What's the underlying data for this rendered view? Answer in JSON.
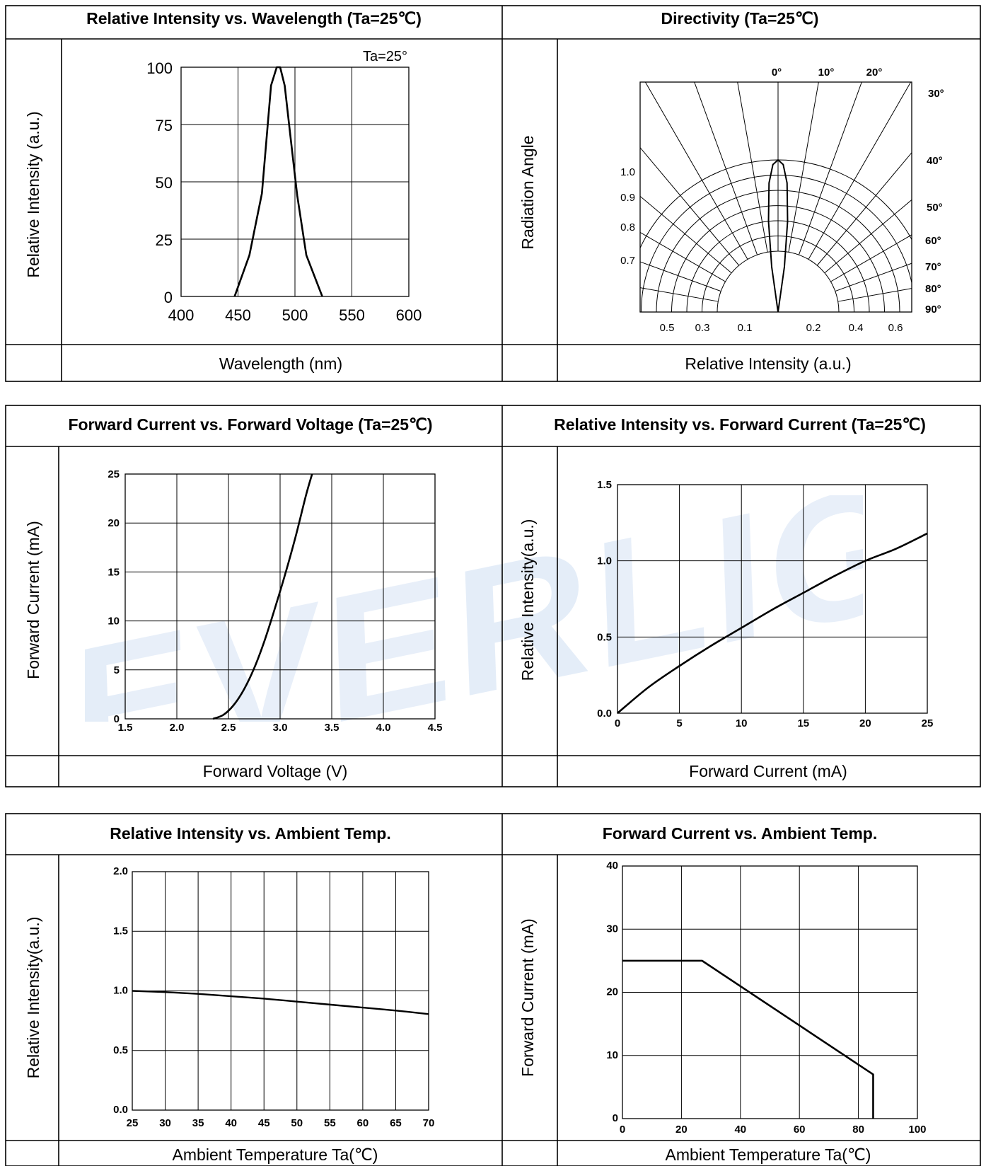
{
  "watermark": "EVERLIGHT",
  "chart_data": [
    {
      "type": "line",
      "title": "Relative Intensity vs. Wavelength (Ta=25℃)",
      "xlabel": "Wavelength (nm)",
      "ylabel": "Relative Intensity (a.u.)",
      "annotation": "Ta=25°",
      "xlim": [
        400,
        600
      ],
      "ylim": [
        0,
        100
      ],
      "xticks": [
        "400",
        "450",
        "500",
        "550",
        "600"
      ],
      "yticks": [
        "0",
        "25",
        "50",
        "75",
        "100"
      ],
      "x": [
        447,
        460,
        471,
        479,
        484,
        487,
        491,
        496,
        502,
        510,
        524
      ],
      "y": [
        0,
        18,
        45,
        92,
        100,
        100,
        92,
        70,
        44,
        18,
        0
      ]
    },
    {
      "type": "polar",
      "title": "Directivity (Ta=25℃)",
      "xlabel": "Relative Intensity (a.u.)",
      "ylabel": "Radiation Angle",
      "angle_labels": [
        "0°",
        "10°",
        "20°",
        "30°",
        "40°",
        "50°",
        "60°",
        "70°",
        "80°",
        "90°"
      ],
      "radial_labels": [
        "1.0",
        "0.9",
        "0.8",
        "0.7"
      ],
      "bottom_labels": [
        "0.5",
        "0.3",
        "0.1",
        "0.2",
        "0.4",
        "0.6"
      ],
      "angle": [
        0,
        2,
        4,
        6,
        8,
        10
      ],
      "intensity": [
        1.0,
        0.97,
        0.85,
        0.6,
        0.3,
        0.0
      ]
    },
    {
      "type": "line",
      "title": "Forward Current vs. Forward Voltage (Ta=25℃)",
      "xlabel": "Forward Voltage (V)",
      "ylabel": "Forward Current (mA)",
      "xlim": [
        1.5,
        4.5
      ],
      "ylim": [
        0,
        25
      ],
      "xticks": [
        "1.5",
        "2.0",
        "2.5",
        "3.0",
        "3.5",
        "4.0",
        "4.5"
      ],
      "yticks": [
        "0",
        "5",
        "10",
        "15",
        "20",
        "25"
      ],
      "x": [
        2.35,
        2.45,
        2.55,
        2.65,
        2.75,
        2.85,
        2.95,
        3.05,
        3.15,
        3.25,
        3.31
      ],
      "y": [
        0,
        0.4,
        1.4,
        3.0,
        5.2,
        8.0,
        11.3,
        14.8,
        18.6,
        22.8,
        25
      ]
    },
    {
      "type": "line",
      "title": "Relative Intensity vs. Forward Current (Ta=25℃)",
      "xlabel": "Forward Current (mA)",
      "ylabel": "Relative Intensity(a.u.)",
      "xlim": [
        0,
        25
      ],
      "ylim": [
        0,
        1.5
      ],
      "xticks": [
        "0",
        "5",
        "10",
        "15",
        "20",
        "25"
      ],
      "yticks": [
        "0.0",
        "0.5",
        "1.0",
        "1.5"
      ],
      "x": [
        0,
        2.5,
        5,
        7.5,
        10,
        12.5,
        15,
        17.5,
        20,
        22.5,
        25
      ],
      "y": [
        0,
        0.17,
        0.31,
        0.44,
        0.56,
        0.68,
        0.79,
        0.9,
        1.0,
        1.08,
        1.18
      ]
    },
    {
      "type": "line",
      "title": "Relative Intensity vs. Ambient Temp.",
      "xlabel": "Ambient Temperature Ta(℃)",
      "ylabel": "Relative Intensity(a.u.)",
      "xlim": [
        25,
        70
      ],
      "ylim": [
        0,
        2.0
      ],
      "xticks": [
        "25",
        "30",
        "35",
        "40",
        "45",
        "50",
        "55",
        "60",
        "65",
        "70"
      ],
      "yticks": [
        "0.0",
        "0.5",
        "1.0",
        "1.5",
        "2.0"
      ],
      "x": [
        25,
        30,
        35,
        40,
        45,
        50,
        55,
        60,
        65,
        70
      ],
      "y": [
        1.0,
        0.99,
        0.975,
        0.955,
        0.935,
        0.91,
        0.885,
        0.86,
        0.835,
        0.805
      ]
    },
    {
      "type": "line",
      "title": "Forward Current vs. Ambient Temp.",
      "xlabel": "Ambient Temperature Ta(℃)",
      "ylabel": "Forward Current (mA)",
      "xlim": [
        0,
        100
      ],
      "ylim": [
        0,
        40
      ],
      "xticks": [
        "0",
        "20",
        "40",
        "60",
        "80",
        "100"
      ],
      "yticks": [
        "0",
        "10",
        "20",
        "30",
        "40"
      ],
      "x": [
        0,
        27,
        85,
        85
      ],
      "y": [
        25,
        25,
        7,
        0
      ]
    }
  ]
}
